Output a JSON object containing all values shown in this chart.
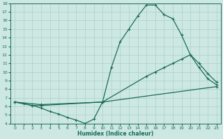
{
  "xlabel": "Humidex (Indice chaleur)",
  "xlim": [
    -0.5,
    23.5
  ],
  "ylim": [
    4,
    18
  ],
  "yticks": [
    4,
    5,
    6,
    7,
    8,
    9,
    10,
    11,
    12,
    13,
    14,
    15,
    16,
    17,
    18
  ],
  "xticks": [
    0,
    1,
    2,
    3,
    4,
    5,
    6,
    7,
    8,
    9,
    10,
    11,
    12,
    13,
    14,
    15,
    16,
    17,
    18,
    19,
    20,
    21,
    22,
    23
  ],
  "bg_color": "#cde8e2",
  "grid_color": "#aacfc8",
  "line_color": "#1a6b5a",
  "line1_x": [
    0,
    1,
    2,
    3,
    10,
    11,
    12,
    13,
    14,
    15,
    16,
    17,
    18,
    19,
    20,
    21,
    22,
    23
  ],
  "line1_y": [
    6.5,
    6.3,
    6.1,
    6.1,
    6.5,
    10.5,
    13.5,
    15.0,
    16.5,
    17.8,
    17.8,
    16.7,
    16.2,
    14.3,
    12.0,
    10.5,
    9.2,
    8.5
  ],
  "line2_x": [
    0,
    2,
    3,
    4,
    5,
    6,
    7,
    8,
    9,
    10,
    15,
    16,
    17,
    18,
    19,
    20,
    21,
    22,
    23
  ],
  "line2_y": [
    6.5,
    6.1,
    5.8,
    5.4,
    5.1,
    4.7,
    4.4,
    4.0,
    4.5,
    6.5,
    9.5,
    10.0,
    10.5,
    11.0,
    11.5,
    12.0,
    11.0,
    9.8,
    8.8
  ],
  "line3_x": [
    0,
    3,
    10,
    23
  ],
  "line3_y": [
    6.5,
    6.2,
    6.5,
    8.3
  ]
}
